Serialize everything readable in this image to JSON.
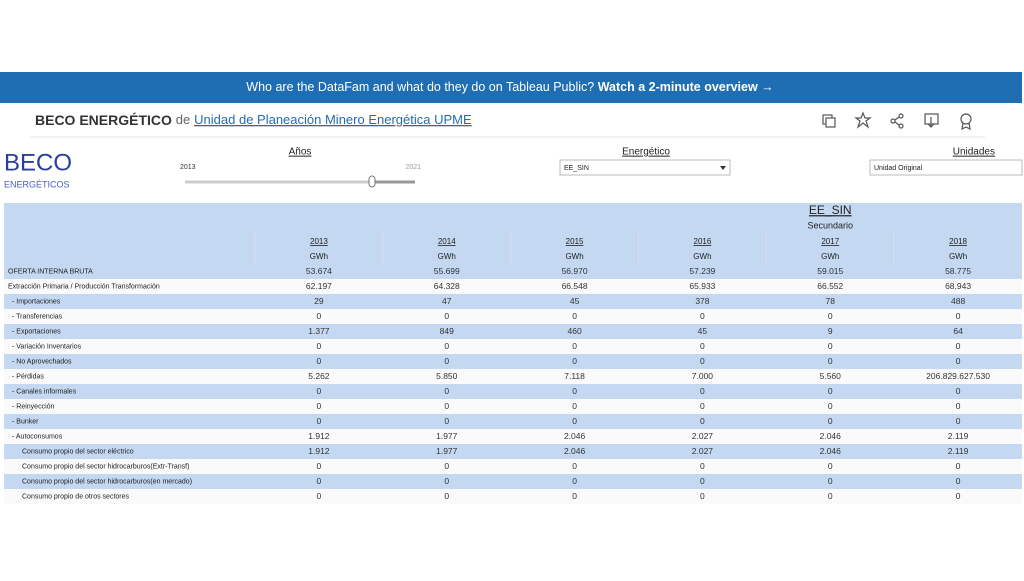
{
  "banner": {
    "question": "Who are the DataFam and what do they do on Tableau Public?",
    "link": "Watch a 2-minute overview →"
  },
  "header": {
    "title": "BECO ENERGÉTICO",
    "connector": "de",
    "author": "Unidad de Planeación Minero Energética UPME"
  },
  "dashboard": {
    "logo": "BECO",
    "logo_sub": "ENERGÉTICOS",
    "filters": {
      "years_label": "Años",
      "year_start": "2013",
      "year_end": "2021",
      "energetico_label": "Energético",
      "energetico_value": "EE_SIN",
      "unidades_label": "Unidades",
      "unidades_value": "Unidad Original"
    }
  },
  "table": {
    "title": "EE_SIN",
    "subtitle": "Secundario",
    "years": [
      "2013",
      "2014",
      "2015",
      "2016",
      "2017",
      "2018"
    ],
    "unit": "GWh",
    "rows": [
      {
        "label": "OFERTA INTERNA BRUTA",
        "values": [
          "53.674",
          "55.699",
          "56.970",
          "57.239",
          "59.015",
          "58.775"
        ]
      },
      {
        "label": "Extracción Primaria / Producción Transformación",
        "values": [
          "62.197",
          "64.328",
          "66.548",
          "65.933",
          "66.552",
          "68.943"
        ]
      },
      {
        "label": " - Importaciones",
        "values": [
          "29",
          "47",
          "45",
          "378",
          "78",
          "488"
        ]
      },
      {
        "label": " - Transferencias",
        "values": [
          "0",
          "0",
          "0",
          "0",
          "0",
          "0"
        ]
      },
      {
        "label": " - Exportaciones",
        "values": [
          "1.377",
          "849",
          "460",
          "45",
          "9",
          "64"
        ]
      },
      {
        "label": " - Variación Inventarios",
        "values": [
          "0",
          "0",
          "0",
          "0",
          "0",
          "0"
        ]
      },
      {
        "label": " - No Aprovechados",
        "values": [
          "0",
          "0",
          "0",
          "0",
          "0",
          "0"
        ]
      },
      {
        "label": " - Pérdidas",
        "values": [
          "5.262",
          "5.850",
          "7.118",
          "7.000",
          "5.560",
          "206.829.627.530"
        ]
      },
      {
        "label": " - Canales informales",
        "values": [
          "0",
          "0",
          "0",
          "0",
          "0",
          "0"
        ]
      },
      {
        "label": " - Reinyección",
        "values": [
          "0",
          "0",
          "0",
          "0",
          "0",
          "0"
        ]
      },
      {
        "label": " - Bunker",
        "values": [
          "0",
          "0",
          "0",
          "0",
          "0",
          "0"
        ]
      },
      {
        "label": " - Autoconsumos",
        "values": [
          "1.912",
          "1.977",
          "2.046",
          "2.027",
          "2.046",
          "2.119"
        ]
      },
      {
        "label": "Consumo propio del sector eléctrico",
        "values": [
          "1.912",
          "1.977",
          "2.046",
          "2.027",
          "2.046",
          "2.119"
        ]
      },
      {
        "label": "Consumo propio del sector hidrocarburos(Extr-Transf)",
        "values": [
          "0",
          "0",
          "0",
          "0",
          "0",
          "0"
        ]
      },
      {
        "label": "Consumo propio del sector hidrocarburos(en mercado)",
        "values": [
          "0",
          "0",
          "0",
          "0",
          "0",
          "0"
        ]
      },
      {
        "label": "Consumo propio de otros sectores",
        "values": [
          "0",
          "0",
          "0",
          "0",
          "0",
          "0"
        ]
      }
    ]
  }
}
